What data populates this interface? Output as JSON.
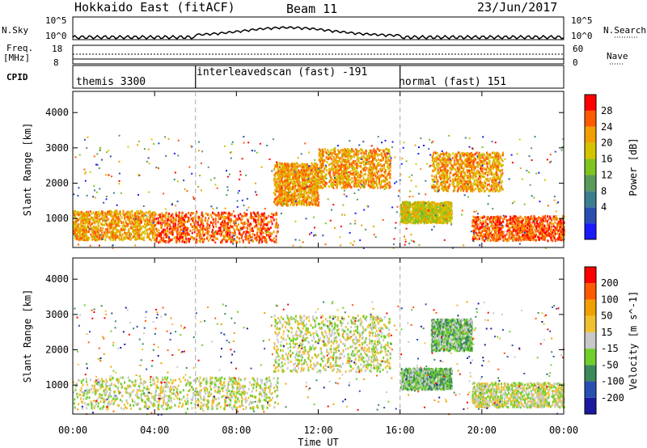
{
  "header": {
    "station": "Hokkaido East (fitACF)",
    "beam": "Beam 11",
    "date": "23/Jun/2017"
  },
  "left_labels": {
    "nsky": "N.Sky",
    "nsky_hi": "10^5",
    "nsky_lo": "10^0",
    "freq": "Freq.",
    "freq_unit": "[MHz]",
    "freq_hi": "18",
    "freq_lo": "8",
    "cpid": "CPID"
  },
  "right_labels": {
    "nsearch": "N.Search",
    "nsearch_hi": "10^5",
    "nsearch_lo": "10^0",
    "nave": "Nave",
    "nave_hi": "60",
    "nave_lo": "0"
  },
  "cpid_segments": [
    {
      "label": "themis 3300",
      "start_hour": 0
    },
    {
      "label": "interleavedscan (fast) -191",
      "start_hour": 6
    },
    {
      "label": "normal (fast) 151",
      "start_hour": 16
    }
  ],
  "chart_data": [
    {
      "type": "heatmap",
      "panel": "power",
      "xlabel": "Time UT",
      "ylabel": "Slant Range [km]",
      "x_ticks": [
        "00:00",
        "04:00",
        "08:00",
        "12:00",
        "16:00",
        "20:00",
        "00:00"
      ],
      "xlim_hours": [
        0,
        24
      ],
      "ylim": [
        180,
        4600
      ],
      "y_ticks": [
        1000,
        2000,
        3000,
        4000
      ],
      "colorbar": {
        "label": "Power [dB]",
        "ticks": [
          "28",
          "24",
          "20",
          "16",
          "12",
          "8",
          "4"
        ],
        "colors": [
          "#1a1aff",
          "#2a4fb3",
          "#3a7f8f",
          "#5a9a5a",
          "#7fc41f",
          "#d4c400",
          "#f0a000",
          "#ff5a00",
          "#ff0000"
        ]
      },
      "regions": [
        {
          "t0": 0.0,
          "t1": 4.0,
          "r0": 420,
          "r1": 1250,
          "level": 6
        },
        {
          "t0": 4.0,
          "t1": 10.0,
          "r0": 350,
          "r1": 1200,
          "level": 7
        },
        {
          "t0": 9.8,
          "t1": 12.0,
          "r0": 1400,
          "r1": 2600,
          "level": 6
        },
        {
          "t0": 12.0,
          "t1": 15.5,
          "r0": 1900,
          "r1": 3000,
          "level": 6
        },
        {
          "t0": 16.0,
          "t1": 18.5,
          "r0": 900,
          "r1": 1500,
          "level": 5
        },
        {
          "t0": 17.5,
          "t1": 21.0,
          "r0": 1800,
          "r1": 2900,
          "level": 6
        },
        {
          "t0": 19.5,
          "t1": 24.0,
          "r0": 400,
          "r1": 1100,
          "level": 7
        }
      ]
    },
    {
      "type": "heatmap",
      "panel": "velocity",
      "xlabel": "Time UT",
      "ylabel": "Slant Range [km]",
      "x_ticks": [
        "00:00",
        "04:00",
        "08:00",
        "12:00",
        "16:00",
        "20:00",
        "00:00"
      ],
      "xlim_hours": [
        0,
        24
      ],
      "ylim": [
        180,
        4600
      ],
      "y_ticks": [
        1000,
        2000,
        3000,
        4000
      ],
      "colorbar": {
        "label": "Velocity [m s^-1]",
        "ticks": [
          "200",
          "100",
          "50",
          "15",
          "-15",
          "-50",
          "-100",
          "-200"
        ],
        "colors": [
          "#1a1aa0",
          "#2a4fb3",
          "#3a8a5a",
          "#6fd02a",
          "#c8c8c8",
          "#f0c030",
          "#f0a000",
          "#ff5a00",
          "#ff0000"
        ]
      },
      "regions": [
        {
          "t0": 0.0,
          "t1": 10.0,
          "r0": 350,
          "r1": 1250,
          "level": 4
        },
        {
          "t0": 9.8,
          "t1": 15.5,
          "r0": 1400,
          "r1": 3000,
          "level": 4
        },
        {
          "t0": 16.0,
          "t1": 18.5,
          "r0": 900,
          "r1": 1500,
          "level": 3
        },
        {
          "t0": 17.5,
          "t1": 19.5,
          "r0": 2000,
          "r1": 2900,
          "level": 3
        },
        {
          "t0": 19.5,
          "t1": 24.0,
          "r0": 400,
          "r1": 1100,
          "level": 4
        }
      ]
    }
  ]
}
